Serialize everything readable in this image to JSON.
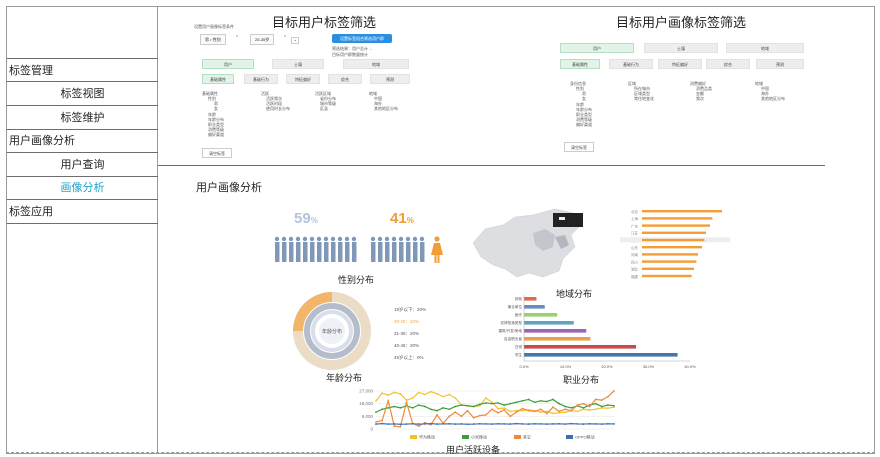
{
  "sidebar": {
    "items": [
      {
        "label": "标签管理",
        "level": 1
      },
      {
        "label": "标签视图",
        "level": 2
      },
      {
        "label": "标签维护",
        "level": 2
      },
      {
        "label": "用户画像分析",
        "level": 1
      },
      {
        "label": "用户查询",
        "level": 2
      },
      {
        "label": "画像分析",
        "level": 2,
        "active": true
      },
      {
        "label": "标签应用",
        "level": 1
      }
    ]
  },
  "target_tags": {
    "title": "目标用户标签筛选",
    "subtitle": "设置用户画像标签条件",
    "tags": [
      "男 • 性别",
      "25-35岁"
    ],
    "add_label": "+",
    "action_label": "设置标签组合筛选用户群",
    "result_line1": "筛选结果：用户总计 ...",
    "result_line2": "目标用户群数量统计",
    "tabs": [
      "用户",
      "土壤",
      "地域"
    ],
    "filters": [
      "基础属性",
      "基础行为",
      "特征偏好",
      "综合",
      "预测"
    ],
    "tree": [
      [
        "基础属性",
        "性别",
        "男",
        "女",
        "年龄",
        "年龄分布",
        "职业类型",
        "消费等级",
        "偏好渠道"
      ],
      [
        "活跃",
        "活跃频次",
        "活跃时段",
        "使用时长分布"
      ],
      [
        "活跃区域",
        "省份分布",
        "城市等级",
        "区县"
      ],
      [
        "地域",
        "中国",
        "海外",
        "其他地区分布"
      ]
    ],
    "clear_label": "清空标签"
  },
  "portrait_tags": {
    "title": "目标用户画像标签筛选",
    "tabs": [
      "用户",
      "土壤",
      "地域"
    ],
    "filters": [
      "基础属性",
      "基础行为",
      "特征偏好",
      "综合",
      "预测"
    ],
    "tree": [
      [
        "身份信息",
        "性别",
        "男",
        "女",
        "年龄",
        "年龄分布",
        "职业类型",
        "消费等级",
        "偏好渠道"
      ],
      [
        "区域",
        "所在城市",
        "区域类型",
        "常住地变化"
      ],
      [
        "消费偏好",
        "消费品类",
        "金额",
        "频次"
      ],
      [
        "地域",
        "中国",
        "海外",
        "其他地区分布"
      ]
    ],
    "clear_label": "清空标签"
  },
  "analysis": {
    "title": "用户画像分析",
    "gender": {
      "title": "性别分布",
      "male_pct": "59",
      "female_pct": "41",
      "pct_sign": "%",
      "male_color": "#7f98b8",
      "female_color": "#f29d35"
    },
    "age": {
      "title": "年龄分布",
      "center_label": "年龄分布",
      "legend": [
        "19岁以下：20%",
        "20-25：20%",
        "31-35：20%",
        "40-45：20%",
        "45岁以上：0%"
      ],
      "ring_colors": [
        "#e6d3b5",
        "#b5bdcd",
        "#f2b56a",
        "#cfd6e6",
        "#98a6c2"
      ]
    },
    "region": {
      "title": "地域分布"
    },
    "occupation": {
      "title": "职业分布"
    },
    "device": {
      "title": "用户活跃设备"
    }
  },
  "chart_data": [
    {
      "type": "bar",
      "title": "",
      "orientation": "horizontal",
      "categories": [
        "北京",
        "上海",
        "广东",
        "江苏",
        "浙江",
        "山东",
        "河南",
        "四川",
        "湖北",
        "福建"
      ],
      "values": [
        100,
        88,
        85,
        80,
        78,
        75,
        70,
        68,
        65,
        62
      ],
      "color": "#f29d35"
    },
    {
      "type": "bar",
      "title": "职业分布",
      "orientation": "horizontal",
      "categories": [
        "其他",
        "事业单位",
        "医疗",
        "农林牧渔类型",
        "建筑/开发/房地",
        "自由职业者",
        "白领",
        "学生"
      ],
      "values": [
        3,
        5,
        8,
        12,
        15,
        16,
        27,
        37
      ],
      "colors": [
        "#e26a4f",
        "#6a8cbf",
        "#9ccf6e",
        "#5fa3c6",
        "#9d62b5",
        "#e8a04f",
        "#c94a4a",
        "#4477aa"
      ],
      "xticks": [
        "0.0%",
        "10.0%",
        "20.0%",
        "30.0%",
        "40.0%"
      ],
      "xlim": [
        0,
        40
      ]
    },
    {
      "type": "line",
      "title": "用户活跃设备",
      "x": [
        1,
        2,
        3,
        4,
        5,
        6,
        7,
        8,
        9,
        10,
        11,
        12,
        13,
        14,
        15,
        16,
        17,
        18,
        19,
        20,
        21,
        22,
        23,
        24,
        25,
        26,
        27,
        28,
        29,
        30,
        31,
        32,
        33,
        34,
        35,
        36,
        37,
        38,
        39,
        40
      ],
      "yticks": [
        "0",
        "9,000",
        "18,000",
        "27,000"
      ],
      "ylim": [
        0,
        27000
      ],
      "series": [
        {
          "name": "华为移动",
          "color": "#f2c22e",
          "values": [
            20000,
            25500,
            24000,
            26000,
            25000,
            20500,
            22000,
            26000,
            24500,
            26500,
            25000,
            23000,
            24500,
            22000,
            17000,
            16500,
            16000,
            16500,
            22000,
            19000,
            14500,
            14800,
            12500,
            13000,
            13000,
            13500,
            13000,
            12000,
            12500,
            11000,
            11500,
            12000,
            13000,
            12500,
            14000,
            13500,
            14000,
            15000,
            14800,
            15500
          ]
        },
        {
          "name": "小米移动",
          "color": "#3aa03a",
          "values": [
            12000,
            14000,
            15000,
            16000,
            15000,
            16500,
            15000,
            17000,
            16000,
            14000,
            13000,
            15000,
            14000,
            16000,
            17000,
            16500,
            16000,
            17500,
            18500,
            18000,
            18500,
            17000,
            18000,
            19000,
            20000,
            21000,
            19000,
            20000,
            19500,
            21000,
            18000,
            16000,
            15000,
            16500,
            15000,
            17000,
            18000,
            16000,
            17000,
            16500
          ]
        },
        {
          "name": "其它",
          "color": "#ee8a3a",
          "values": [
            5000,
            6000,
            20000,
            2000,
            1500,
            19000,
            4000,
            2000,
            4500,
            3000,
            10000,
            4000,
            9000,
            12000,
            9000,
            13000,
            8000,
            9500,
            10000,
            14000,
            11500,
            13500,
            9000,
            12000,
            14500,
            13000,
            12500,
            14000,
            11000,
            15500,
            12500,
            14000,
            13000,
            17000,
            18000,
            16000,
            21000,
            20500,
            23000,
            27000
          ]
        },
        {
          "name": "OPPO移动",
          "color": "#3e6fb3",
          "values": [
            3500,
            3800,
            3500,
            3600,
            3400,
            3500,
            3700,
            3500,
            3600,
            3800,
            3500,
            3600,
            3700,
            3500,
            3600,
            3400,
            3500,
            3700,
            3600,
            3500,
            3700,
            3600,
            3500,
            3800,
            3600,
            3500,
            3700,
            3600,
            3500,
            3600,
            3700,
            3500,
            3800,
            3600,
            3500,
            3700,
            3600,
            3500,
            3700,
            3600
          ]
        }
      ]
    }
  ]
}
